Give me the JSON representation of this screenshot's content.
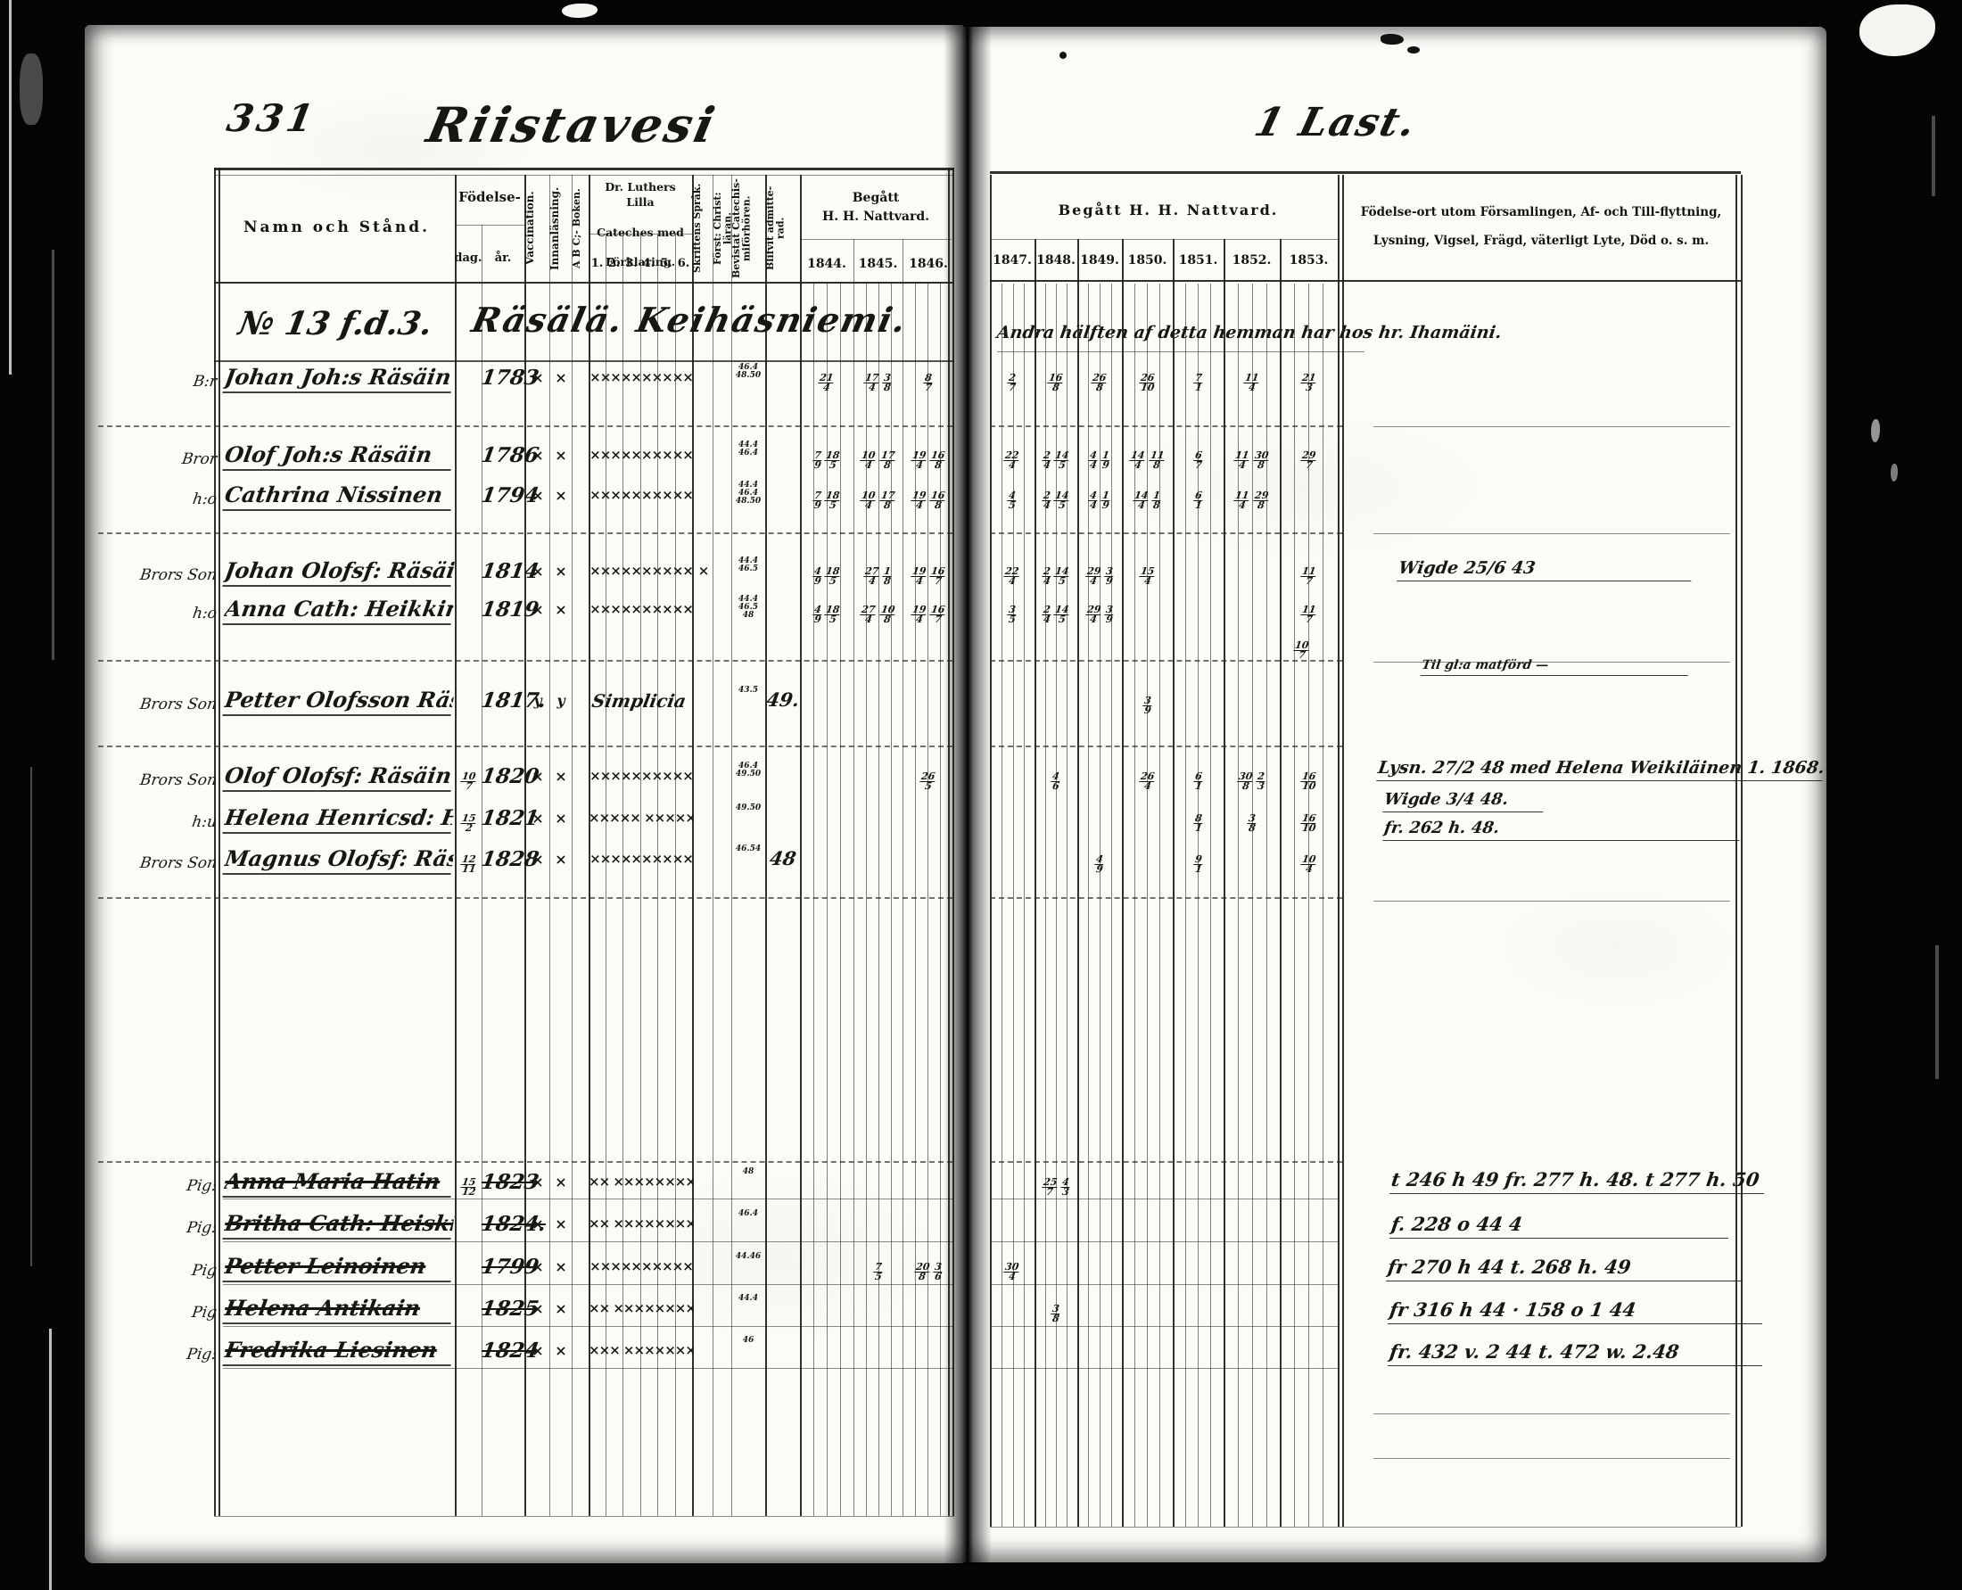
{
  "left_page": {
    "page_number": "331",
    "title": "Riistavesi"
  },
  "right_page": {
    "title": "1 Last."
  },
  "table_header": {
    "name_col": "Namn och Stånd.",
    "birth_label": "Födelse-",
    "birth_sub": [
      "dag.",
      "år."
    ],
    "vertical_cols": [
      "Vaccination.",
      "Innanläsning.",
      "A B C;- Boken."
    ],
    "cateches_label_lines": [
      "Dr. Luthers Lilla",
      "Cateches med",
      "Förklaring."
    ],
    "cateches_sub": [
      "1.",
      "2.",
      "3.",
      "4.",
      "5.",
      "6."
    ],
    "vertical_cols2": [
      "Skriftens Språk.",
      "Först: Christ: läran.",
      "Bevistat Catechis-\nmiförhören.",
      "Blifvit admitte-\nrad."
    ],
    "communion_left_label_lines": [
      "Begått",
      "H. H. Nattvard."
    ],
    "communion_right_label": "Begått H. H. Nattvard.",
    "years_left": [
      "1844.",
      "1845.",
      "1846."
    ],
    "years_right": [
      "1847.",
      "1848.",
      "1849.",
      "1850.",
      "1851.",
      "1852.",
      "1853."
    ],
    "notes_col_lines": [
      "Födelse-ort utom Församlingen, Af- och Till-flyttning,",
      "Lysning, Vigsel, Frägd, väterligt Lyte, Död o. s. m."
    ]
  },
  "section": {
    "number": "№ 13 f.d.3.",
    "name": "Räsälä.  Keihäsniemi.",
    "right_annotation": "Andra hälften af detta hemman har hos hr. Ihamäini."
  },
  "rows": [
    {
      "prefix": "B:r",
      "name": "Johan Joh:s Räsäin",
      "struck": false,
      "birth_day": "",
      "birth_year": "1783",
      "vacc": "×",
      "innan": "×",
      "abc": "",
      "cateches": "××××××××××",
      "skrift": "",
      "forhor": "46.4 48.50",
      "admitted": "",
      "communion": [
        "21/4",
        "17/4 3/8",
        "8/7",
        "2/7",
        "16/8",
        "26/8",
        "26/10",
        "7/1",
        "11/4",
        "21/3"
      ]
    },
    {
      "prefix": "Bror",
      "name": "Olof Joh:s Räsäin",
      "struck": false,
      "birth_day": "",
      "birth_year": "1786",
      "vacc": "×",
      "innan": "×",
      "abc": "",
      "cateches": "××××××××××",
      "skrift": "",
      "forhor": "44.4 46.4",
      "admitted": "",
      "communion": [
        "7/9 18/5",
        "10/4 17/8",
        "19/4 16/8",
        "22/4",
        "2/4 14/5",
        "4/4 1/9",
        "14/4 11/8",
        "6/7",
        "11/4 30/8",
        "29/7"
      ]
    },
    {
      "prefix": "h:o",
      "name": "Cathrina Nissinen",
      "struck": false,
      "birth_day": "",
      "birth_year": "1794",
      "vacc": "×",
      "innan": "×",
      "abc": "",
      "cateches": "××××××××××",
      "skrift": "",
      "forhor": "44.4 46.4 48.50",
      "admitted": "",
      "communion": [
        "7/9 18/5",
        "10/4 17/8",
        "19/4 16/8",
        "4/5",
        "2/4 14/5",
        "4/4 1/9",
        "14/4 1/8",
        "6/1",
        "11/4 29/8",
        ""
      ]
    },
    {
      "prefix": "Brors Son",
      "name": "Johan Olofsf: Räsäin",
      "struck": false,
      "birth_day": "",
      "birth_year": "1814",
      "vacc": "×",
      "innan": "×",
      "abc": "",
      "cateches": "××××××××××",
      "skrift": "×",
      "forhor": "44.4 46.5",
      "admitted": "",
      "communion": [
        "4/9 18/5",
        "27/4 1/8",
        "19/4 16/7",
        "22/4",
        "2/4 14/5",
        "29/4 3/9",
        "15/4",
        "",
        "",
        "11/7"
      ]
    },
    {
      "prefix": "h:o",
      "name": "Anna Cath: Heikkin",
      "struck": false,
      "birth_day": "",
      "birth_year": "1819",
      "vacc": "×",
      "innan": "×",
      "abc": "",
      "cateches": "××××××××××",
      "skrift": "",
      "forhor": "44.4 46.5 48",
      "admitted": "",
      "communion": [
        "4/9 18/5",
        "27/4 10/8",
        "19/4 16/7",
        "3/5",
        "2/4 14/5",
        "29/4 3/9",
        "",
        "",
        "",
        "11/7"
      ]
    },
    {
      "prefix": "Brors Son",
      "name": "Petter Olofsson Räsänen",
      "struck": false,
      "birth_day": "",
      "birth_year": "1817.",
      "vacc": "y",
      "innan": "y",
      "abc": "",
      "cateches": "Simplicia",
      "skrift": "",
      "forhor": "43.5",
      "admitted": "49.",
      "communion": [
        "",
        "",
        "",
        "",
        "",
        "",
        "3/9",
        "",
        "",
        ""
      ]
    },
    {
      "prefix": "Brors Son",
      "name": "Olof Olofsf: Räsäin",
      "struck": false,
      "birth_day": "10/7",
      "birth_year": "1820",
      "vacc": "×",
      "innan": "×",
      "abc": "",
      "cateches": "××××××××××",
      "skrift": "",
      "forhor": "46.4 49.50",
      "admitted": "",
      "communion": [
        "",
        "",
        "26/5",
        "",
        "4/6",
        "",
        "26/4",
        "6/1",
        "30/8 2/3",
        "16/10"
      ]
    },
    {
      "prefix": "h:u",
      "name": "Helena Henricsd: Heiskin",
      "struck": false,
      "birth_day": "15/2",
      "birth_year": "1821",
      "vacc": "×",
      "innan": "×",
      "abc": "",
      "cateches": "××××× ×××××",
      "skrift": "",
      "forhor": "49.50",
      "admitted": "",
      "communion": [
        "",
        "",
        "",
        "",
        "",
        "",
        "",
        "8/1",
        "3/8",
        "16/10"
      ]
    },
    {
      "prefix": "Brors Son",
      "name": "Magnus Olofsf: Räsäin",
      "struck": false,
      "birth_day": "12/11",
      "birth_year": "1828",
      "vacc": "×",
      "innan": "×",
      "abc": "",
      "cateches": "××××××××××",
      "skrift": "",
      "forhor": "46.54",
      "admitted": "48",
      "communion": [
        "",
        "",
        "",
        "",
        "",
        "4/9",
        "",
        "9/1",
        "",
        "10/4"
      ]
    },
    {
      "prefix": "Pig:",
      "name": "Anna Maria Hatin",
      "struck": true,
      "birth_day": "15/12",
      "birth_year": "1823",
      "vacc": "×",
      "innan": "×",
      "abc": "",
      "cateches": "×× ××××××××",
      "skrift": "",
      "forhor": "48",
      "admitted": "",
      "communion": [
        "",
        "",
        "",
        "",
        "25/7 4/3",
        "",
        "",
        "",
        "",
        ""
      ]
    },
    {
      "prefix": "Pig:",
      "name": "Britha Cath: Heiskin",
      "struck": true,
      "birth_day": "",
      "birth_year": "1824.",
      "vacc": "×",
      "innan": "×",
      "abc": "",
      "cateches": "×× ××××××××",
      "skrift": "",
      "forhor": "46.4",
      "admitted": "",
      "communion": [
        "",
        "",
        "",
        "",
        "",
        "",
        "",
        "",
        "",
        ""
      ]
    },
    {
      "prefix": "Pig",
      "name": "Petter Leinoinen",
      "struck": true,
      "birth_day": "",
      "birth_year": "1799",
      "vacc": "×",
      "innan": "×",
      "abc": "",
      "cateches": "××××××××××",
      "skrift": "",
      "forhor": "44.46",
      "admitted": "",
      "communion": [
        "",
        "7/5",
        "20/8 3/6",
        "30/4",
        "",
        "",
        "",
        "",
        "",
        ""
      ]
    },
    {
      "prefix": "Pig",
      "name": "Helena Antikain",
      "struck": true,
      "birth_day": "",
      "birth_year": "1825",
      "vacc": "×",
      "innan": "×",
      "abc": "",
      "cateches": "×× ××××××××",
      "skrift": "",
      "forhor": "44.4",
      "admitted": "",
      "communion": [
        "",
        "",
        "",
        "",
        "3/8",
        "",
        "",
        "",
        "",
        ""
      ]
    },
    {
      "prefix": "Pig:",
      "name": "Fredrika Liesinen",
      "struck": true,
      "birth_day": "",
      "birth_year": "1824",
      "vacc": "×",
      "innan": "×",
      "abc": "",
      "cateches": "××× ×××××××",
      "skrift": "",
      "forhor": "46",
      "admitted": "",
      "communion": [
        "",
        "",
        "",
        "",
        "",
        "",
        "",
        "",
        "",
        ""
      ]
    }
  ],
  "margin_notes": [
    "Wigde 25/6 43",
    "Til gl:a matförd —",
    "Lysn. 27/2 48 med Helena Weikiläinen 1. 1868.",
    "Wigde 3/4 48.",
    "fr. 262 h. 48.",
    "t 246 h 49   fr. 277 h. 48. t 277 h. 50",
    "f. 228 o 44 4",
    "fr 270 h 44  t. 268 h. 49",
    "fr 316 h 44 · 158 o 1 44",
    "fr. 432 v. 2 44  t. 472 w. 2.48"
  ],
  "stray_marks": [
    "10/7"
  ]
}
